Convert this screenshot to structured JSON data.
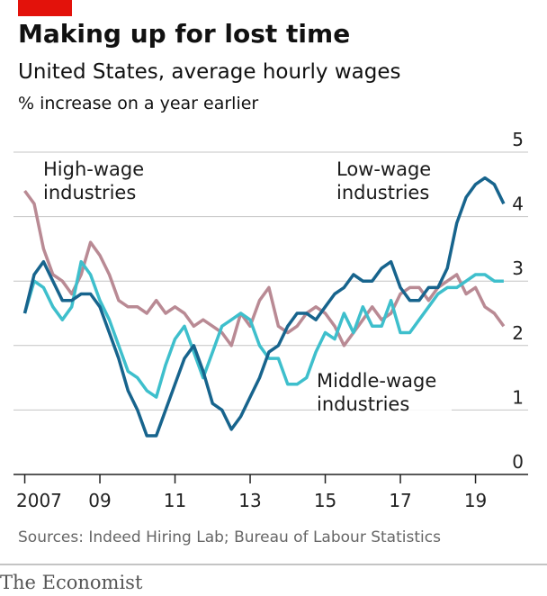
{
  "chart_data": {
    "type": "line",
    "title": "Making up for lost time",
    "subtitle": "United States, average hourly wages",
    "y_label": "% increase on a year earlier",
    "source": "Sources: Indeed Hiring Lab; Bureau of Labour Statistics",
    "brand": "The Economist",
    "x": [
      2007.0,
      2007.25,
      2007.5,
      2007.75,
      2008.0,
      2008.25,
      2008.5,
      2008.75,
      2009.0,
      2009.25,
      2009.5,
      2009.75,
      2010.0,
      2010.25,
      2010.5,
      2010.75,
      2011.0,
      2011.25,
      2011.5,
      2011.75,
      2012.0,
      2012.25,
      2012.5,
      2012.75,
      2013.0,
      2013.25,
      2013.5,
      2013.75,
      2014.0,
      2014.25,
      2014.5,
      2014.75,
      2015.0,
      2015.25,
      2015.5,
      2015.75,
      2016.0,
      2016.25,
      2016.5,
      2016.75,
      2017.0,
      2017.25,
      2017.5,
      2017.75,
      2018.0,
      2018.25,
      2018.5,
      2018.75,
      2019.0,
      2019.25,
      2019.5,
      2019.75
    ],
    "series": [
      {
        "name": "High-wage industries",
        "color": "#b98a94",
        "values": [
          4.4,
          4.2,
          3.5,
          3.1,
          3.0,
          2.8,
          3.1,
          3.6,
          3.4,
          3.1,
          2.7,
          2.6,
          2.6,
          2.5,
          2.7,
          2.5,
          2.6,
          2.5,
          2.3,
          2.4,
          2.3,
          2.2,
          2.0,
          2.5,
          2.3,
          2.7,
          2.9,
          2.3,
          2.2,
          2.3,
          2.5,
          2.6,
          2.5,
          2.3,
          2.0,
          2.2,
          2.4,
          2.6,
          2.4,
          2.5,
          2.8,
          2.9,
          2.9,
          2.7,
          2.9,
          3.0,
          3.1,
          2.8,
          2.9,
          2.6,
          2.5,
          2.3
        ]
      },
      {
        "name": "Middle-wage industries",
        "color": "#3ebfcc",
        "values": [
          2.5,
          3.0,
          2.9,
          2.6,
          2.4,
          2.6,
          3.3,
          3.1,
          2.7,
          2.4,
          2.0,
          1.6,
          1.5,
          1.3,
          1.2,
          1.7,
          2.1,
          2.3,
          1.9,
          1.5,
          1.9,
          2.3,
          2.4,
          2.5,
          2.4,
          2.0,
          1.8,
          1.8,
          1.4,
          1.4,
          1.5,
          1.9,
          2.2,
          2.1,
          2.5,
          2.2,
          2.6,
          2.3,
          2.3,
          2.7,
          2.2,
          2.2,
          2.4,
          2.6,
          2.8,
          2.9,
          2.9,
          3.0,
          3.1,
          3.1,
          3.0,
          3.0
        ]
      },
      {
        "name": "Low-wage industries",
        "color": "#17648d",
        "values": [
          2.5,
          3.1,
          3.3,
          3.0,
          2.7,
          2.7,
          2.8,
          2.8,
          2.6,
          2.2,
          1.8,
          1.3,
          1.0,
          0.6,
          0.6,
          1.0,
          1.4,
          1.8,
          2.0,
          1.6,
          1.1,
          1.0,
          0.7,
          0.9,
          1.2,
          1.5,
          1.9,
          2.0,
          2.3,
          2.5,
          2.5,
          2.4,
          2.6,
          2.8,
          2.9,
          3.1,
          3.0,
          3.0,
          3.2,
          3.3,
          2.9,
          2.7,
          2.7,
          2.9,
          2.9,
          3.2,
          3.9,
          4.3,
          4.5,
          4.6,
          4.5,
          4.2
        ]
      }
    ],
    "xlim": [
      2006.7,
      2020.4
    ],
    "xticks": [
      2007,
      {
        "value": 2009,
        "label": "09"
      },
      {
        "value": 2011,
        "label": "11"
      },
      {
        "value": 2013,
        "label": "13"
      },
      {
        "value": 2015,
        "label": "15"
      },
      {
        "value": 2017,
        "label": "17"
      },
      {
        "value": 2019,
        "label": "19"
      }
    ],
    "ylim": [
      0,
      5
    ],
    "yticks": [
      0,
      1,
      2,
      3,
      4,
      5
    ],
    "grid": true
  }
}
